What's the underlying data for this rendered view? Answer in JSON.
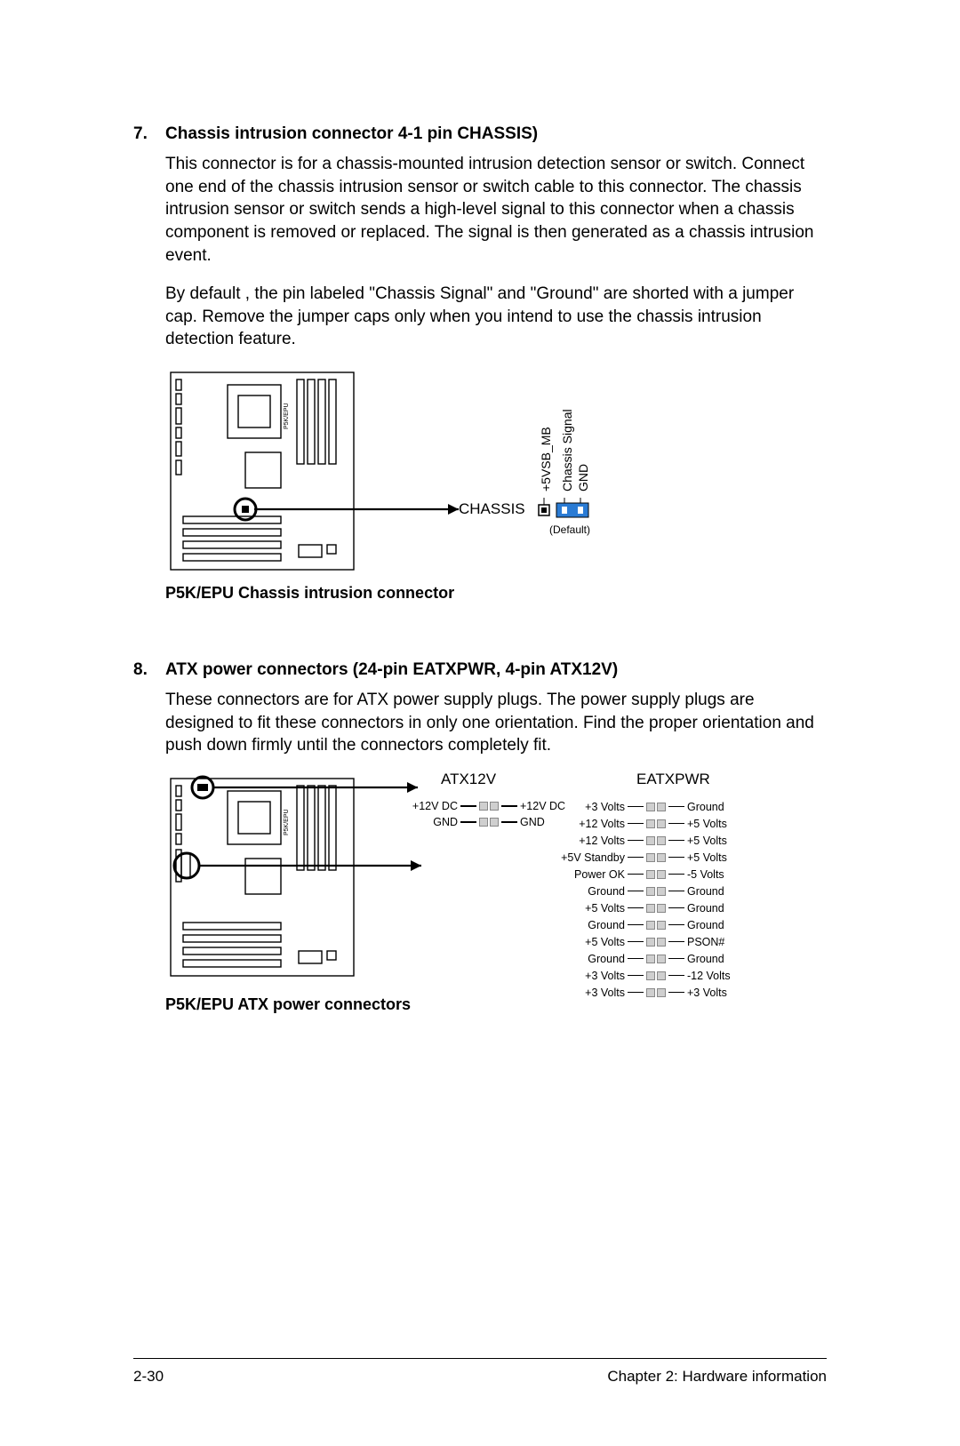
{
  "section7": {
    "num": "7.",
    "title": "Chassis intrusion connector 4-1 pin CHASSIS)",
    "para1": "This connector is for a chassis-mounted intrusion detection sensor or switch. Connect one end of the chassis intrusion sensor or switch cable to this connector. The chassis intrusion sensor or switch sends a high-level signal to this connector when a chassis component is removed or replaced. The signal is then generated as a chassis intrusion event.",
    "para2": "By default , the pin labeled \"Chassis Signal\" and \"Ground\" are shorted with a jumper cap. Remove the jumper caps only when you intend to use the chassis intrusion detection feature.",
    "diagram": {
      "board_label": "P5K/EPU",
      "chassis_label": "CHASSIS",
      "pins": [
        "+5VSB_MB",
        "Chassis Signal",
        "GND"
      ],
      "default_text": "(Default)",
      "caption": "P5K/EPU Chassis intrusion connector",
      "arrow_color": "#000000",
      "jumper_color": "#2a7bd4",
      "pin_stroke": "#000000"
    }
  },
  "section8": {
    "num": "8.",
    "title": "ATX power connectors (24-pin EATXPWR, 4-pin ATX12V)",
    "para1": "These connectors are for ATX power supply plugs. The power supply plugs are designed to fit these connectors in only one orientation. Find the proper orientation and push down firmly until the connectors completely fit.",
    "diagram": {
      "board_label": "P5K/EPU",
      "atx12v_title": "ATX12V",
      "eatxpwr_title": "EATXPWR",
      "atx12v_rows": [
        {
          "l": "+12V DC",
          "r": "+12V DC"
        },
        {
          "l": "GND",
          "r": "GND"
        }
      ],
      "eatxpwr_rows": [
        {
          "l": "+3 Volts",
          "r": "Ground"
        },
        {
          "l": "+12 Volts",
          "r": "+5 Volts"
        },
        {
          "l": "+12 Volts",
          "r": "+5 Volts"
        },
        {
          "l": "+5V Standby",
          "r": "+5 Volts"
        },
        {
          "l": "Power OK",
          "r": "-5 Volts"
        },
        {
          "l": "Ground",
          "r": "Ground"
        },
        {
          "l": "+5 Volts",
          "r": "Ground"
        },
        {
          "l": "Ground",
          "r": "Ground"
        },
        {
          "l": "+5 Volts",
          "r": "PSON#"
        },
        {
          "l": "Ground",
          "r": "Ground"
        },
        {
          "l": "+3 Volts",
          "r": "-12 Volts"
        },
        {
          "l": "+3 Volts",
          "r": "+3 Volts"
        }
      ],
      "caption": "P5K/EPU ATX power connectors",
      "pin_fill": "#cfcfcf",
      "pin_border": "#999999"
    }
  },
  "footer": {
    "page": "2-30",
    "chapter": "Chapter 2: Hardware information"
  }
}
